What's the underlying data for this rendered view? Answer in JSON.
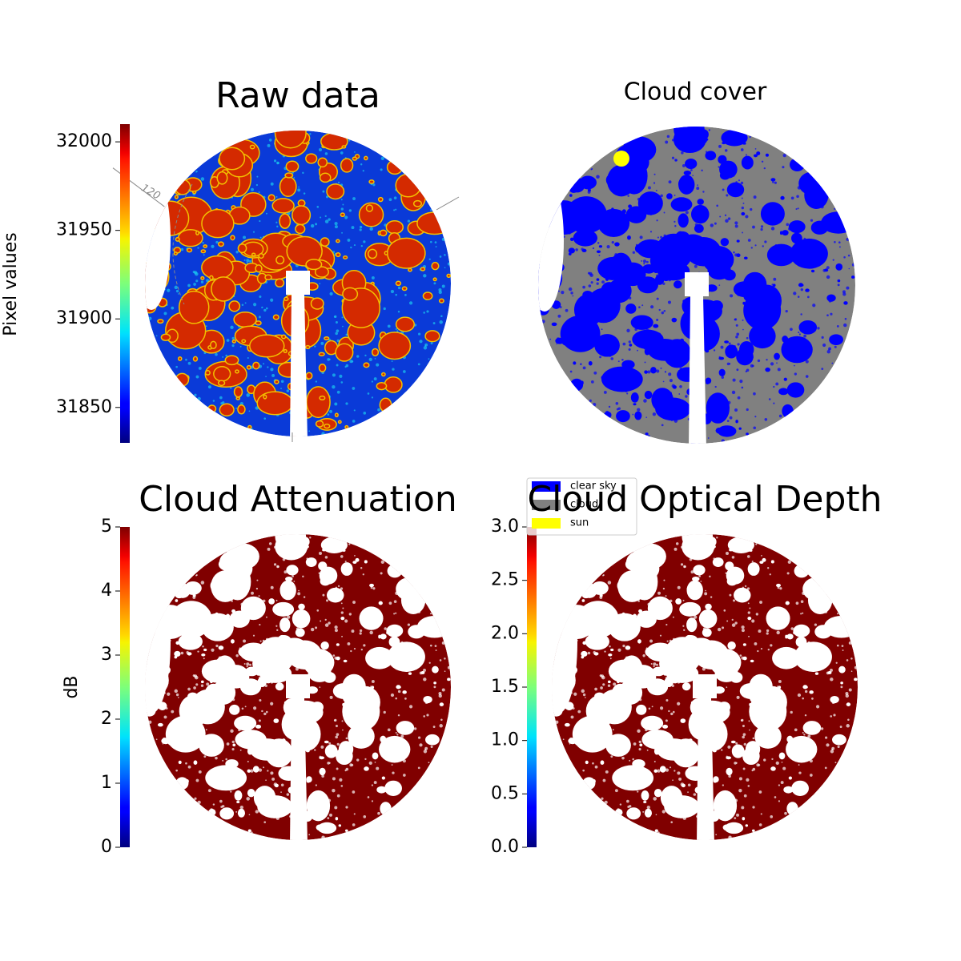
{
  "chart_data": [
    {
      "type": "image",
      "title": "Raw data",
      "annotation": "120",
      "colorbar": {
        "label": "Pixel values",
        "cmap": "jet",
        "ylim": [
          31830,
          32010
        ],
        "yticks": [
          31850,
          31900,
          31950,
          32000
        ]
      }
    },
    {
      "type": "image",
      "title": "Cloud cover",
      "series": [
        {
          "name": "clear sky",
          "color": "#0000ff"
        },
        {
          "name": "cloud",
          "color": "#808080"
        },
        {
          "name": "sun",
          "color": "#ffff00"
        }
      ]
    },
    {
      "type": "image",
      "title": "Cloud Attenuation",
      "colorbar": {
        "label": "dB",
        "cmap": "jet",
        "ylim": [
          0,
          5
        ],
        "yticks": [
          0,
          1,
          2,
          3,
          4,
          5
        ]
      }
    },
    {
      "type": "image",
      "title": "Cloud Optical Depth",
      "colorbar": {
        "cmap": "jet",
        "ylim": [
          0,
          3
        ],
        "yticks": [
          {
            "value": 0,
            "label": "0.0"
          },
          {
            "value": 0.5,
            "label": "0.5"
          },
          {
            "value": 1,
            "label": "1.0"
          },
          {
            "value": 1.5,
            "label": "1.5"
          },
          {
            "value": 2,
            "label": "2.0"
          },
          {
            "value": 2.5,
            "label": "2.5"
          },
          {
            "value": 3,
            "label": "3.0"
          }
        ]
      }
    }
  ]
}
